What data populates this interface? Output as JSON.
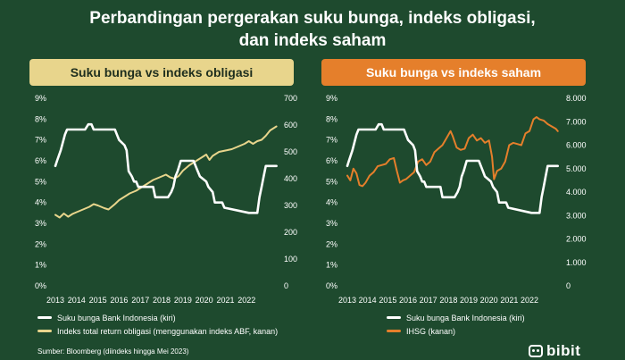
{
  "title": {
    "line1": "Perbandingan pergerakan suku bunga, indeks obligasi,",
    "line2": "dan indeks saham"
  },
  "source": "Sumber: Bloomberg (diindeks hingga Mei 2023)",
  "logo": {
    "text": "bibit",
    "icon": "bibit-logo-icon"
  },
  "colors": {
    "background": "#1e4a2e",
    "rate": "#ffffff",
    "bond": "#e8d58c",
    "stock": "#e57f2b"
  },
  "chart_data": [
    {
      "type": "line",
      "title": "Suku bunga vs indeks obligasi",
      "x_ticks": [
        "2013",
        "2014",
        "2015",
        "2016",
        "2017",
        "2018",
        "2019",
        "2020",
        "2021",
        "2022"
      ],
      "xlim": [
        2013,
        2023.5
      ],
      "left_axis": {
        "ticks": [
          "0%",
          "1%",
          "2%",
          "3%",
          "4%",
          "5%",
          "6%",
          "7%",
          "8%",
          "9%"
        ],
        "ylim": [
          0,
          9
        ]
      },
      "right_axis": {
        "ticks": [
          "0",
          "100",
          "200",
          "300",
          "400",
          "500",
          "600",
          "700"
        ],
        "ylim": [
          0,
          700
        ]
      },
      "series": [
        {
          "name": "Suku bunga Bank Indonesia (kiri)",
          "axis": "left",
          "color": "#ffffff",
          "x": [
            2013.0,
            2013.08,
            2013.25,
            2013.45,
            2013.55,
            2013.9,
            2014.4,
            2014.55,
            2014.7,
            2014.8,
            2015.5,
            2015.6,
            2015.8,
            2015.9,
            2016.0,
            2016.25,
            2016.35,
            2016.45,
            2016.6,
            2016.7,
            2016.8,
            2016.9,
            2017.6,
            2017.7,
            2018.3,
            2018.45,
            2018.55,
            2018.65,
            2018.75,
            2018.9,
            2019.5,
            2019.6,
            2019.7,
            2019.8,
            2020.1,
            2020.2,
            2020.4,
            2020.5,
            2020.85,
            2020.95,
            2022.1,
            2022.5,
            2022.6,
            2022.7,
            2022.8,
            2022.9,
            2023.4
          ],
          "y": [
            5.75,
            6.0,
            6.5,
            7.25,
            7.5,
            7.5,
            7.5,
            7.75,
            7.75,
            7.5,
            7.5,
            7.5,
            7.5,
            7.25,
            7.0,
            6.75,
            6.5,
            5.5,
            5.25,
            5.0,
            5.0,
            4.75,
            4.75,
            4.25,
            4.25,
            4.5,
            4.75,
            5.25,
            5.5,
            6.0,
            6.0,
            5.75,
            5.5,
            5.25,
            5.0,
            4.75,
            4.5,
            4.0,
            4.0,
            3.75,
            3.5,
            3.5,
            4.25,
            4.75,
            5.25,
            5.75,
            5.75
          ]
        },
        {
          "name": "Indeks total return obligasi (menggunakan indeks ABF, kanan)",
          "axis": "right",
          "color": "#e8d58c",
          "x": [
            2013.0,
            2013.2,
            2013.4,
            2013.6,
            2013.8,
            2014.0,
            2014.3,
            2014.6,
            2014.8,
            2015.0,
            2015.3,
            2015.5,
            2015.8,
            2016.0,
            2016.3,
            2016.5,
            2016.8,
            2017.0,
            2017.3,
            2017.6,
            2017.9,
            2018.2,
            2018.4,
            2018.6,
            2018.8,
            2019.0,
            2019.3,
            2019.6,
            2019.9,
            2020.1,
            2020.25,
            2020.4,
            2020.7,
            2021.0,
            2021.3,
            2021.6,
            2021.9,
            2022.1,
            2022.3,
            2022.5,
            2022.7,
            2022.9,
            2023.1,
            2023.4
          ],
          "y": [
            265,
            255,
            270,
            258,
            268,
            275,
            285,
            295,
            305,
            300,
            290,
            285,
            305,
            320,
            335,
            345,
            355,
            365,
            380,
            395,
            405,
            415,
            405,
            400,
            410,
            430,
            450,
            465,
            480,
            490,
            470,
            485,
            500,
            505,
            510,
            520,
            530,
            540,
            530,
            540,
            545,
            560,
            580,
            595
          ]
        }
      ]
    },
    {
      "type": "line",
      "title": "Suku bunga vs indeks saham",
      "x_ticks": [
        "2013",
        "2014",
        "2015",
        "2016",
        "2017",
        "2018",
        "2019",
        "2020",
        "2021",
        "2022"
      ],
      "xlim": [
        2013,
        2023.5
      ],
      "left_axis": {
        "ticks": [
          "0%",
          "1%",
          "2%",
          "3%",
          "4%",
          "5%",
          "6%",
          "7%",
          "8%",
          "9%"
        ],
        "ylim": [
          0,
          9
        ]
      },
      "right_axis": {
        "ticks": [
          "0",
          "1.000",
          "2.000",
          "3.000",
          "4.000",
          "5.000",
          "6.000",
          "7.000",
          "8.000"
        ],
        "ylim": [
          0,
          8000
        ]
      },
      "series": [
        {
          "name": "Suku bunga Bank Indonesia (kiri)",
          "axis": "left",
          "color": "#ffffff",
          "x": [
            2013.0,
            2013.08,
            2013.25,
            2013.45,
            2013.55,
            2013.9,
            2014.4,
            2014.55,
            2014.7,
            2014.8,
            2015.5,
            2015.6,
            2015.8,
            2015.9,
            2016.0,
            2016.25,
            2016.35,
            2016.45,
            2016.6,
            2016.7,
            2016.8,
            2016.9,
            2017.6,
            2017.7,
            2018.3,
            2018.45,
            2018.55,
            2018.65,
            2018.75,
            2018.9,
            2019.5,
            2019.6,
            2019.7,
            2019.8,
            2020.1,
            2020.2,
            2020.4,
            2020.5,
            2020.85,
            2020.95,
            2022.1,
            2022.5,
            2022.6,
            2022.7,
            2022.8,
            2022.9,
            2023.4
          ],
          "y": [
            5.75,
            6.0,
            6.5,
            7.25,
            7.5,
            7.5,
            7.5,
            7.75,
            7.75,
            7.5,
            7.5,
            7.5,
            7.5,
            7.25,
            7.0,
            6.75,
            6.5,
            5.5,
            5.25,
            5.0,
            5.0,
            4.75,
            4.75,
            4.25,
            4.25,
            4.5,
            4.75,
            5.25,
            5.5,
            6.0,
            6.0,
            5.75,
            5.5,
            5.25,
            5.0,
            4.75,
            4.5,
            4.0,
            4.0,
            3.75,
            3.5,
            3.5,
            4.25,
            4.75,
            5.25,
            5.75,
            5.75
          ]
        },
        {
          "name": "IHSG (kanan)",
          "axis": "right",
          "color": "#e57f2b",
          "x": [
            2013.0,
            2013.15,
            2013.3,
            2013.45,
            2013.6,
            2013.75,
            2013.9,
            2014.1,
            2014.3,
            2014.5,
            2014.7,
            2014.9,
            2015.1,
            2015.3,
            2015.45,
            2015.6,
            2015.75,
            2015.9,
            2016.1,
            2016.3,
            2016.5,
            2016.7,
            2016.9,
            2017.1,
            2017.3,
            2017.5,
            2017.7,
            2017.9,
            2018.1,
            2018.2,
            2018.4,
            2018.6,
            2018.8,
            2019.0,
            2019.2,
            2019.4,
            2019.6,
            2019.8,
            2020.0,
            2020.15,
            2020.25,
            2020.4,
            2020.6,
            2020.8,
            2021.0,
            2021.2,
            2021.4,
            2021.6,
            2021.8,
            2022.0,
            2022.2,
            2022.35,
            2022.5,
            2022.7,
            2022.9,
            2023.1,
            2023.3,
            2023.4
          ],
          "y": [
            4700,
            4500,
            5000,
            4800,
            4300,
            4250,
            4400,
            4700,
            4850,
            5100,
            5150,
            5200,
            5400,
            5450,
            4900,
            4400,
            4500,
            4550,
            4700,
            4850,
            5300,
            5400,
            5150,
            5300,
            5700,
            5850,
            6000,
            6300,
            6600,
            6400,
            5900,
            5800,
            5850,
            6300,
            6450,
            6200,
            6300,
            6100,
            6200,
            5500,
            4550,
            4900,
            5000,
            5300,
            6000,
            6100,
            6050,
            6000,
            6500,
            6600,
            7100,
            7200,
            7100,
            7050,
            6900,
            6800,
            6700,
            6600
          ]
        }
      ]
    }
  ]
}
